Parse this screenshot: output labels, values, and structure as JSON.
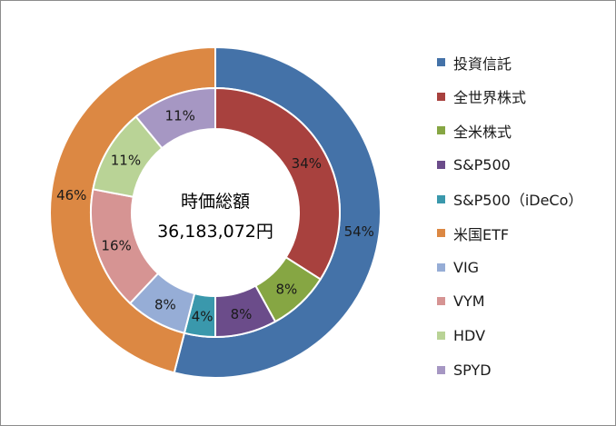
{
  "chart_data": {
    "type": "pie",
    "subtype": "double-donut",
    "center_label": {
      "line1": "時価総額",
      "line2": "36,183,072円"
    },
    "legend_position": "right",
    "outer_ring": {
      "values": [
        54,
        46
      ],
      "labels": [
        "54%",
        "46%"
      ],
      "categories": [
        "投資信託",
        "米国ETF"
      ],
      "colors": [
        "#4472A8",
        "#DC8843"
      ]
    },
    "inner_ring": {
      "values": [
        34,
        8,
        8,
        4,
        8,
        16,
        11,
        11
      ],
      "labels": [
        "34%",
        "8%",
        "8%",
        "4%",
        "8%",
        "16%",
        "11%",
        "11%"
      ],
      "categories": [
        "全世界株式",
        "全米株式",
        "S&P500",
        "S&P500（iDeCo）",
        "VIG",
        "VYM",
        "HDV",
        "SPYD"
      ],
      "colors": [
        "#A8413E",
        "#86A643",
        "#6B4C8A",
        "#3A98AC",
        "#96ADD6",
        "#D69493",
        "#B9D396",
        "#A697C3"
      ]
    },
    "legend": [
      {
        "label": "投資信託",
        "color": "#4472A8"
      },
      {
        "label": "全世界株式",
        "color": "#A8413E"
      },
      {
        "label": "全米株式",
        "color": "#86A643"
      },
      {
        "label": "S&P500",
        "color": "#6B4C8A"
      },
      {
        "label": "S&P500（iDeCo）",
        "color": "#3A98AC"
      },
      {
        "label": "米国ETF",
        "color": "#DC8843"
      },
      {
        "label": "VIG",
        "color": "#96ADD6"
      },
      {
        "label": "VYM",
        "color": "#D69493"
      },
      {
        "label": "HDV",
        "color": "#B9D396"
      },
      {
        "label": "SPYD",
        "color": "#A697C3"
      }
    ]
  }
}
